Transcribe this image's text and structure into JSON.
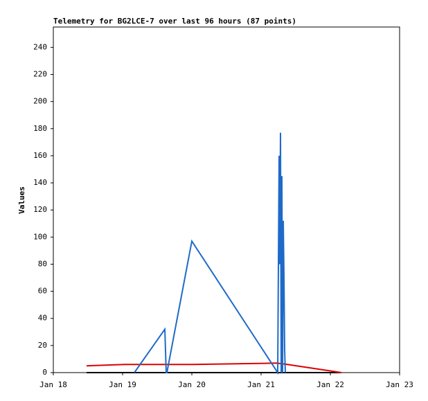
{
  "chart_data": {
    "type": "line",
    "title": "Telemetry for BG2LCE-7 over last 96 hours (87 points)",
    "y_label": "Values",
    "xlim": [
      0,
      5
    ],
    "xticks": [
      {
        "value": 0,
        "label": "Jan 18"
      },
      {
        "value": 1,
        "label": "Jan 19"
      },
      {
        "value": 2,
        "label": "Jan 20"
      },
      {
        "value": 3,
        "label": "Jan 21"
      },
      {
        "value": 4,
        "label": "Jan 22"
      },
      {
        "value": 5,
        "label": "Jan 23"
      }
    ],
    "ylim": [
      0,
      255
    ],
    "yticks": [
      0,
      20,
      40,
      60,
      80,
      100,
      120,
      140,
      160,
      180,
      200,
      220,
      240
    ],
    "series": [
      {
        "color": "#000000",
        "x": [
          0.48,
          4.16
        ],
        "values": [
          0,
          0
        ]
      },
      {
        "color": "#dd0000",
        "x": [
          0.48,
          1.03,
          2.0,
          3.23,
          3.38,
          4.03,
          4.16
        ],
        "values": [
          5,
          6,
          6,
          7,
          6,
          1,
          0
        ]
      },
      {
        "color": "#1e6ac8",
        "x": [
          1.17,
          1.61,
          1.63,
          1.64,
          2.0,
          3.24,
          3.26,
          3.27,
          3.28,
          3.29,
          3.3,
          3.31,
          3.32,
          3.33,
          3.34,
          3.35
        ],
        "values": [
          0,
          32,
          0,
          0,
          97,
          0,
          160,
          80,
          177,
          0,
          145,
          0,
          112,
          72,
          17,
          0
        ]
      }
    ]
  }
}
